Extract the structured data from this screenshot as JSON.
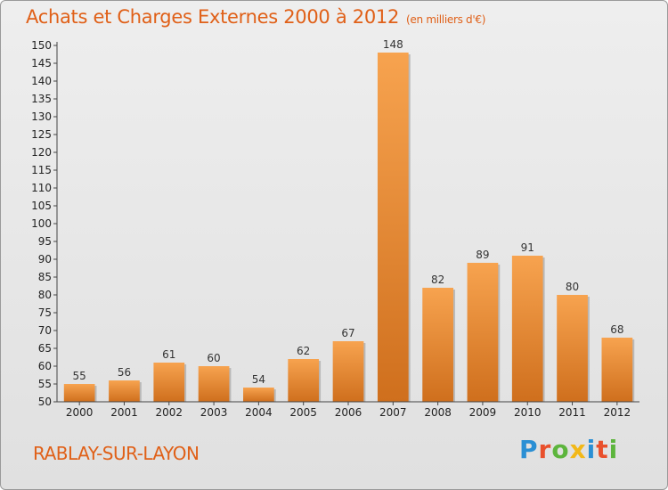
{
  "title": "Achats et Charges Externes 2000 à 2012",
  "unit": "(en milliers d'€)",
  "commune": "RABLAY-SUR-LAYON",
  "logo": "Proxiti",
  "colors": {
    "title": "#e06018",
    "bar_light": "#f7a34f",
    "bar_dark": "#cf6f1d",
    "logo": [
      "#2a8fd4",
      "#e9502c",
      "#5db53d",
      "#f2b818",
      "#2a8fd4",
      "#e9502c",
      "#5db53d"
    ]
  },
  "chart_data": {
    "type": "bar",
    "title": "Achats et Charges Externes 2000 à 2012",
    "categories": [
      "2000",
      "2001",
      "2002",
      "2003",
      "2004",
      "2005",
      "2006",
      "2007",
      "2008",
      "2009",
      "2010",
      "2011",
      "2012"
    ],
    "values": [
      55,
      56,
      61,
      60,
      54,
      62,
      67,
      148,
      82,
      89,
      91,
      80,
      68
    ],
    "ylim": [
      50,
      150
    ],
    "ytick_step": 5,
    "grid": false,
    "data_labels": true
  }
}
